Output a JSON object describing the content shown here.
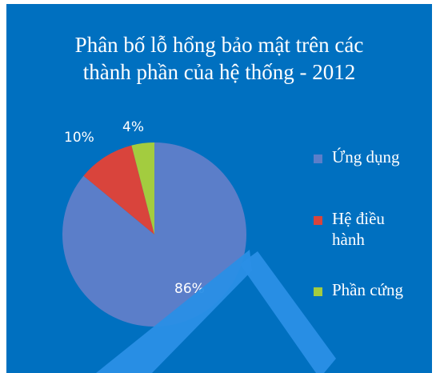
{
  "chart_data": {
    "type": "pie",
    "title_lines": [
      "Phân bố lỗ hổng bảo mật trên các",
      "thành phần của hệ thống - 2012"
    ],
    "slices": [
      {
        "label": "Ứng dụng",
        "value": 86,
        "display": "86%",
        "color": "#5b7ec9"
      },
      {
        "label": "Hệ điều hành",
        "value": 10,
        "display": "10%",
        "color": "#d9443c"
      },
      {
        "label": "Phần cứng",
        "value": 4,
        "display": "4%",
        "color": "#a3cc3f"
      }
    ],
    "legend_position": "right",
    "legend": [
      {
        "lines": [
          "Ứng dụng"
        ],
        "color": "#5b7ec9"
      },
      {
        "lines": [
          "Hệ điều",
          "hành"
        ],
        "color": "#d9443c"
      },
      {
        "lines": [
          "Phần cứng"
        ],
        "color": "#a3cc3f"
      }
    ]
  },
  "colors": {
    "background": "#0070c0",
    "text": "#ffffff",
    "watermark": "#2a8fe6"
  }
}
